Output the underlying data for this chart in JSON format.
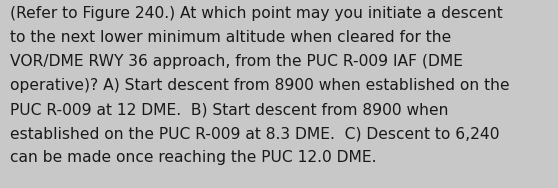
{
  "background_color": "#c8c8c8",
  "text_color": "#1a1a1a",
  "font_size": 11.2,
  "fig_width": 5.58,
  "fig_height": 1.88,
  "lines": [
    "(Refer to Figure 240.) At which point may you initiate a descent",
    "to the next lower minimum altitude when cleared for the",
    "VOR/DME RWY 36 approach, from the PUC R-009 IAF (DME",
    "operative)? A) Start descent from 8900 when established on the",
    "PUC R-009 at 12 DME.  B) Start descent from 8900 when",
    "established on the PUC R-009 at 8.3 DME.  C) Descent to 6,240",
    "can be made once reaching the PUC 12.0 DME."
  ]
}
